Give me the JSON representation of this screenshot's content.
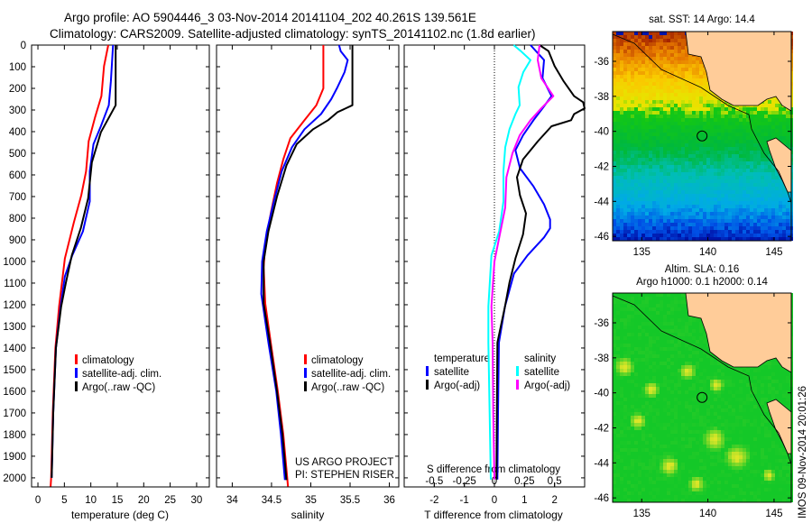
{
  "header": {
    "title_line1": "Argo profile: AO 5904446_3 03-Nov-2014 20141104_202 40.261S 139.561E",
    "title_line2": "Climatology: CARS2009. Satellite-adjusted climatology: synTS_20141102.nc (1.8d earlier)"
  },
  "colors": {
    "climatology": "#ff0000",
    "satellite": "#0000ff",
    "argo": "#000000",
    "sal_satellite": "#00ffff",
    "sal_argo": "#ff00ff"
  },
  "credits": {
    "project": "US ARGO PROJECT",
    "pi": "PI: STEPHEN RISER",
    "stamp": "IMOS 09-Nov-2014 20:01:26"
  },
  "chart_data": [
    {
      "type": "line",
      "xlabel": "temperature (deg C)",
      "ylabel": "depth",
      "xlim": [
        -1.2,
        32.4
      ],
      "ylim": [
        2042,
        0
      ],
      "xticks": [
        "0",
        "5",
        "10",
        "15",
        "20",
        "25",
        "30"
      ],
      "yticks": [
        "0",
        "100",
        "200",
        "300",
        "400",
        "500",
        "600",
        "700",
        "800",
        "900",
        "1000",
        "1100",
        "1200",
        "1300",
        "1400",
        "1500",
        "1600",
        "1700",
        "1800",
        "1900",
        "2000"
      ],
      "legend": [
        "climatology",
        "satellite-adj. clim.",
        "Argo(..raw -QC)"
      ],
      "series": [
        {
          "name": "climatology",
          "color": "#ff0000",
          "points": [
            [
              13.3,
              0
            ],
            [
              12.5,
              97
            ],
            [
              12.0,
              236
            ],
            [
              10.8,
              333
            ],
            [
              9.6,
              444
            ],
            [
              9.1,
              583
            ],
            [
              8.2,
              694
            ],
            [
              6.8,
              819
            ],
            [
              5.1,
              986
            ],
            [
              4.0,
              1208
            ],
            [
              3.3,
              1400
            ],
            [
              2.8,
              1700
            ],
            [
              2.5,
              2000
            ],
            [
              2.4,
              2040
            ]
          ]
        },
        {
          "name": "satellite-adj. clim.",
          "color": "#0000ff",
          "points": [
            [
              14.2,
              0
            ],
            [
              13.8,
              167
            ],
            [
              13.4,
              278
            ],
            [
              11.9,
              375
            ],
            [
              10.5,
              458
            ],
            [
              9.8,
              583
            ],
            [
              9.8,
              722
            ],
            [
              8.5,
              861
            ],
            [
              6.5,
              972
            ],
            [
              5.1,
              1069
            ],
            [
              4.3,
              1208
            ],
            [
              3.4,
              1400
            ],
            [
              2.9,
              1700
            ],
            [
              2.6,
              2000
            ]
          ]
        },
        {
          "name": "Argo(..raw -QC)",
          "color": "#000000",
          "points": [
            [
              14.7,
              0
            ],
            [
              14.7,
              278
            ],
            [
              11.9,
              403
            ],
            [
              10.2,
              542
            ],
            [
              9.5,
              708
            ],
            [
              8.1,
              847
            ],
            [
              6.4,
              972
            ],
            [
              5.3,
              1097
            ],
            [
              4.4,
              1208
            ],
            [
              3.4,
              1400
            ],
            [
              2.9,
              1700
            ],
            [
              2.6,
              2000
            ]
          ]
        }
      ]
    },
    {
      "type": "line",
      "xlabel": "salinity",
      "ylabel": "depth",
      "xlim": [
        33.8,
        36.12
      ],
      "ylim": [
        2042,
        0
      ],
      "xticks": [
        "34",
        "34.5",
        "35",
        "35.5",
        "36"
      ],
      "legend": [
        "climatology",
        "satellite-adj. clim.",
        "Argo(..raw -QC)"
      ],
      "series": [
        {
          "name": "climatology",
          "color": "#ff0000",
          "points": [
            [
              35.16,
              0
            ],
            [
              35.16,
              200
            ],
            [
              35.07,
              278
            ],
            [
              34.92,
              347
            ],
            [
              34.74,
              431
            ],
            [
              34.65,
              528
            ],
            [
              34.57,
              639
            ],
            [
              34.49,
              778
            ],
            [
              34.42,
              917
            ],
            [
              34.4,
              1028
            ],
            [
              34.42,
              1194
            ],
            [
              34.49,
              1375
            ],
            [
              34.58,
              1600
            ],
            [
              34.65,
              1800
            ],
            [
              34.71,
              2040
            ]
          ]
        },
        {
          "name": "satellite-adj. clim.",
          "color": "#0000ff",
          "points": [
            [
              35.36,
              0
            ],
            [
              35.38,
              28
            ],
            [
              35.47,
              69
            ],
            [
              35.43,
              125
            ],
            [
              35.34,
              194
            ],
            [
              35.26,
              250
            ],
            [
              35.13,
              319
            ],
            [
              34.92,
              389
            ],
            [
              34.76,
              472
            ],
            [
              34.63,
              583
            ],
            [
              34.53,
              722
            ],
            [
              34.44,
              861
            ],
            [
              34.38,
              1000
            ],
            [
              34.37,
              1150
            ],
            [
              34.46,
              1375
            ],
            [
              34.56,
              1600
            ],
            [
              34.62,
              1800
            ],
            [
              34.67,
              2010
            ]
          ]
        },
        {
          "name": "Argo(..raw -QC)",
          "color": "#000000",
          "points": [
            [
              35.53,
              0
            ],
            [
              35.53,
              278
            ],
            [
              35.34,
              310
            ],
            [
              35.22,
              347
            ],
            [
              35.03,
              389
            ],
            [
              34.82,
              458
            ],
            [
              34.69,
              556
            ],
            [
              34.57,
              700
            ],
            [
              34.46,
              861
            ],
            [
              34.4,
              1000
            ],
            [
              34.4,
              1194
            ],
            [
              34.48,
              1375
            ],
            [
              34.57,
              1600
            ],
            [
              34.64,
              1800
            ],
            [
              34.69,
              2010
            ]
          ]
        }
      ]
    },
    {
      "type": "line",
      "xlabel": "T difference from climatology",
      "x2label": "S difference from climatology",
      "xlim": [
        -3,
        3
      ],
      "x2lim": [
        -0.75,
        0.75
      ],
      "ylim": [
        2042,
        0
      ],
      "xticks": [
        "-2",
        "-1",
        "0",
        "1",
        "2"
      ],
      "x2ticks": [
        "-0.5",
        "-0.25",
        "0",
        "0.25",
        "0.5"
      ],
      "legend": {
        "temperature_title": "temperature",
        "salinity_title": "salinity",
        "t_sat": "satellite",
        "t_argo": "Argo(-adj)",
        "s_sat": "satellite",
        "s_argo": "Argo(-adj)"
      },
      "series": [
        {
          "name": "temperature satellite",
          "axis": "T",
          "color": "#0000ff",
          "points": [
            [
              1.2,
              0
            ],
            [
              1.65,
              69
            ],
            [
              1.6,
              153
            ],
            [
              1.9,
              236
            ],
            [
              1.6,
              292
            ],
            [
              1.3,
              347
            ],
            [
              0.95,
              417
            ],
            [
              0.7,
              486
            ],
            [
              0.85,
              569
            ],
            [
              1.3,
              653
            ],
            [
              1.65,
              736
            ],
            [
              1.85,
              806
            ],
            [
              1.85,
              847
            ],
            [
              1.65,
              889
            ],
            [
              1.1,
              972
            ],
            [
              0.65,
              1056
            ],
            [
              0.35,
              1208
            ],
            [
              0.15,
              1375
            ],
            [
              0.12,
              1700
            ],
            [
              0.1,
              2008
            ]
          ]
        },
        {
          "name": "temperature Argo(-adj)",
          "axis": "T",
          "color": "#000000",
          "points": [
            [
              1.5,
              0
            ],
            [
              1.8,
              28
            ],
            [
              2.0,
              97
            ],
            [
              2.3,
              167
            ],
            [
              2.65,
              236
            ],
            [
              2.95,
              264
            ],
            [
              3.0,
              292
            ],
            [
              2.65,
              319
            ],
            [
              2.55,
              347
            ],
            [
              1.9,
              375
            ],
            [
              1.45,
              444
            ],
            [
              0.95,
              528
            ],
            [
              0.75,
              611
            ],
            [
              0.85,
              694
            ],
            [
              1.05,
              778
            ],
            [
              0.95,
              875
            ],
            [
              0.7,
              986
            ],
            [
              0.5,
              1097
            ],
            [
              0.35,
              1208
            ],
            [
              0.1,
              1375
            ],
            [
              0.08,
              1700
            ],
            [
              0.07,
              2008
            ]
          ]
        },
        {
          "name": "salinity satellite",
          "axis": "S",
          "color": "#00ffff",
          "points": [
            [
              0.16,
              0
            ],
            [
              0.22,
              28
            ],
            [
              0.3,
              69
            ],
            [
              0.24,
              125
            ],
            [
              0.2,
              194
            ],
            [
              0.21,
              278
            ],
            [
              0.175,
              319
            ],
            [
              0.125,
              389
            ],
            [
              0.09,
              472
            ],
            [
              0.075,
              583
            ],
            [
              0.075,
              722
            ],
            [
              0.04,
              861
            ],
            [
              -0.025,
              972
            ],
            [
              -0.05,
              1208
            ],
            [
              -0.05,
              1375
            ],
            [
              -0.04,
              1700
            ],
            [
              -0.03,
              2008
            ]
          ]
        },
        {
          "name": "salinity Argo(-adj)",
          "axis": "S",
          "color": "#ff00ff",
          "points": [
            [
              0.375,
              0
            ],
            [
              0.36,
              69
            ],
            [
              0.39,
              153
            ],
            [
              0.49,
              236
            ],
            [
              0.39,
              292
            ],
            [
              0.3,
              347
            ],
            [
              0.21,
              417
            ],
            [
              0.15,
              500
            ],
            [
              0.1,
              611
            ],
            [
              0.09,
              750
            ],
            [
              0.05,
              861
            ],
            [
              0.0,
              1000
            ],
            [
              -0.025,
              1208
            ],
            [
              -0.015,
              1375
            ],
            [
              -0.01,
              1700
            ],
            [
              0.0,
              2008
            ]
          ]
        }
      ]
    },
    {
      "type": "heatmap",
      "title": "sat. SST: 14 Argo: 14.4",
      "xlim": [
        132.8,
        146.3
      ],
      "ylim": [
        -46.25,
        -34.3
      ],
      "xticks": [
        "135",
        "140",
        "145"
      ],
      "yticks": [
        "-36",
        "-38",
        "-40",
        "-42",
        "-44",
        "-46"
      ],
      "marker": {
        "lon": 139.561,
        "lat": -40.261
      }
    },
    {
      "type": "heatmap",
      "title_line1": "Altim. SLA: 0.16",
      "title_line2": "Argo h1000: 0.1 h2000: 0.14",
      "xlim": [
        132.8,
        146.3
      ],
      "ylim": [
        -46.25,
        -34.3
      ],
      "xticks": [
        "135",
        "140",
        "145"
      ],
      "yticks": [
        "-36",
        "-38",
        "-40",
        "-42",
        "-44",
        "-46"
      ],
      "marker": {
        "lon": 139.561,
        "lat": -40.261
      }
    }
  ]
}
